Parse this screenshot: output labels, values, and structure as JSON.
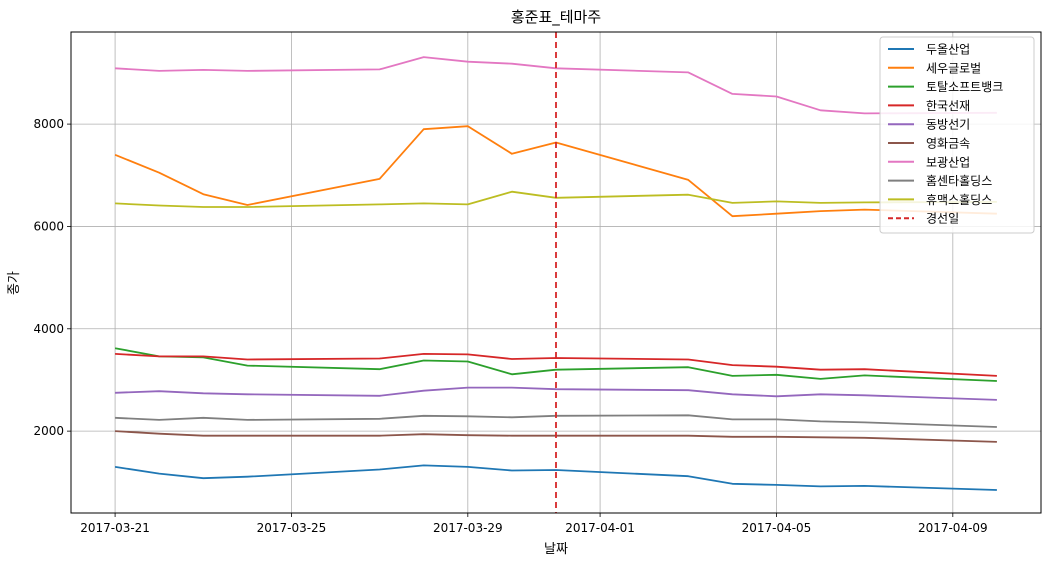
{
  "chart_data": {
    "type": "line",
    "title": "홍준표_테마주",
    "xlabel": "날짜",
    "ylabel": "종가",
    "x": [
      "2017-03-21",
      "2017-03-22",
      "2017-03-23",
      "2017-03-24",
      "2017-03-27",
      "2017-03-28",
      "2017-03-29",
      "2017-03-30",
      "2017-03-31",
      "2017-04-03",
      "2017-04-04",
      "2017-04-05",
      "2017-04-06",
      "2017-04-07",
      "2017-04-10"
    ],
    "xlim": [
      "2017-03-20",
      "2017-04-11"
    ],
    "ylim": [
      400,
      9800
    ],
    "xticks": [
      "2017-03-21",
      "2017-03-25",
      "2017-03-29",
      "2017-04-01",
      "2017-04-05",
      "2017-04-09"
    ],
    "yticks": [
      2000,
      4000,
      6000,
      8000
    ],
    "grid": true,
    "legend_position": "top-right",
    "series": [
      {
        "name": "두올산업",
        "color": "#1f77b4",
        "values": [
          1300,
          1170,
          1080,
          1110,
          1250,
          1330,
          1300,
          1230,
          1240,
          1120,
          970,
          950,
          920,
          930,
          850
        ]
      },
      {
        "name": "세우글로벌",
        "color": "#ff7f0e",
        "values": [
          7400,
          7050,
          6630,
          6420,
          6930,
          7900,
          7960,
          7420,
          7640,
          6910,
          6200,
          6250,
          6300,
          6330,
          6250
        ]
      },
      {
        "name": "토탈소프트뱅크",
        "color": "#2ca02c",
        "values": [
          3620,
          3460,
          3440,
          3280,
          3210,
          3380,
          3360,
          3110,
          3200,
          3250,
          3080,
          3100,
          3020,
          3090,
          2980
        ]
      },
      {
        "name": "한국선재",
        "color": "#d62728",
        "values": [
          3510,
          3460,
          3460,
          3400,
          3420,
          3510,
          3500,
          3410,
          3430,
          3400,
          3290,
          3260,
          3200,
          3210,
          3080
        ]
      },
      {
        "name": "동방선기",
        "color": "#9467bd",
        "values": [
          2750,
          2780,
          2740,
          2720,
          2690,
          2790,
          2850,
          2850,
          2820,
          2800,
          2720,
          2680,
          2720,
          2700,
          2610
        ]
      },
      {
        "name": "영화금속",
        "color": "#8c564b",
        "values": [
          2000,
          1950,
          1910,
          1910,
          1910,
          1940,
          1920,
          1910,
          1910,
          1910,
          1890,
          1890,
          1880,
          1870,
          1790
        ]
      },
      {
        "name": "보광산업",
        "color": "#e377c2",
        "values": [
          9090,
          9040,
          9060,
          9040,
          9070,
          9310,
          9220,
          9180,
          9090,
          9010,
          8590,
          8540,
          8270,
          8210,
          8220
        ]
      },
      {
        "name": "홈센타홀딩스",
        "color": "#7f7f7f",
        "values": [
          2260,
          2220,
          2260,
          2220,
          2240,
          2300,
          2290,
          2270,
          2300,
          2310,
          2230,
          2230,
          2190,
          2170,
          2080
        ]
      },
      {
        "name": "휴맥스홀딩스",
        "color": "#bcbd22",
        "values": [
          6450,
          6410,
          6380,
          6380,
          6430,
          6450,
          6430,
          6680,
          6560,
          6620,
          6460,
          6490,
          6460,
          6470,
          6480
        ]
      }
    ],
    "vline": {
      "name": "경선일",
      "x": "2017-03-31",
      "color": "#d62728",
      "style": "dashed"
    }
  }
}
